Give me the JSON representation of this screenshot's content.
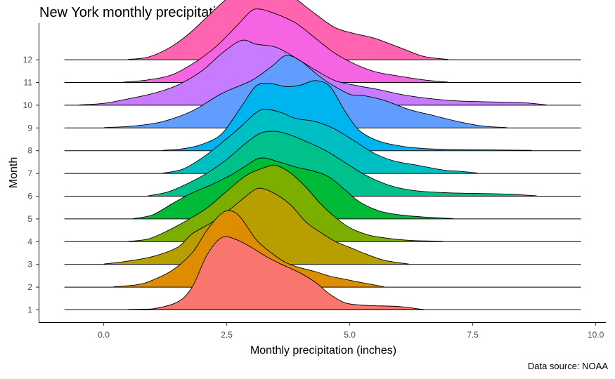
{
  "chart_data": {
    "type": "ridgeline",
    "title": "New York monthly precipitation",
    "caption": "Data source: NOAA",
    "xlabel": "Monthly precipitation (inches)",
    "ylabel": "Month",
    "xlim": [
      -1.0,
      10.0
    ],
    "x_ticks": [
      {
        "value": 0.0,
        "label": "0.0"
      },
      {
        "value": 2.5,
        "label": "2.5"
      },
      {
        "value": 5.0,
        "label": "5.0"
      },
      {
        "value": 7.5,
        "label": "7.5"
      },
      {
        "value": 10.0,
        "label": "10.0"
      }
    ],
    "baseline_range": [
      -0.8,
      9.7
    ],
    "grid": false,
    "legend": "none",
    "series": [
      {
        "month": "1",
        "color": "#F8766D",
        "range": [
          0.5,
          6.5
        ],
        "peak": 1.0,
        "density": [
          [
            0.5,
            0
          ],
          [
            1.0,
            0.01
          ],
          [
            1.5,
            0.1
          ],
          [
            1.8,
            0.3
          ],
          [
            2.1,
            0.72
          ],
          [
            2.4,
            0.95
          ],
          [
            2.7,
            0.92
          ],
          [
            3.0,
            0.82
          ],
          [
            3.3,
            0.7
          ],
          [
            3.6,
            0.6
          ],
          [
            4.0,
            0.48
          ],
          [
            4.3,
            0.36
          ],
          [
            4.6,
            0.2
          ],
          [
            4.9,
            0.09
          ],
          [
            5.2,
            0.06
          ],
          [
            5.5,
            0.05
          ],
          [
            6.0,
            0.04
          ],
          [
            6.5,
            0
          ]
        ]
      },
      {
        "month": "2",
        "color": "#DE8C00",
        "range": [
          0.2,
          5.7
        ],
        "peak": 1.0,
        "density": [
          [
            0.2,
            0
          ],
          [
            0.7,
            0.03
          ],
          [
            1.0,
            0.09
          ],
          [
            1.4,
            0.22
          ],
          [
            1.8,
            0.45
          ],
          [
            2.1,
            0.75
          ],
          [
            2.4,
            0.97
          ],
          [
            2.6,
            1.0
          ],
          [
            2.8,
            0.9
          ],
          [
            3.1,
            0.62
          ],
          [
            3.4,
            0.45
          ],
          [
            3.7,
            0.32
          ],
          [
            4.0,
            0.25
          ],
          [
            4.3,
            0.2
          ],
          [
            4.6,
            0.14
          ],
          [
            4.9,
            0.1
          ],
          [
            5.2,
            0.06
          ],
          [
            5.7,
            0
          ]
        ]
      },
      {
        "month": "3",
        "color": "#B79F00",
        "range": [
          0.0,
          6.2
        ],
        "peak": 1.0,
        "density": [
          [
            0.0,
            0
          ],
          [
            0.5,
            0.04
          ],
          [
            1.0,
            0.1
          ],
          [
            1.5,
            0.22
          ],
          [
            1.8,
            0.4
          ],
          [
            2.2,
            0.55
          ],
          [
            2.6,
            0.74
          ],
          [
            3.0,
            0.95
          ],
          [
            3.2,
            1.0
          ],
          [
            3.5,
            0.92
          ],
          [
            3.8,
            0.78
          ],
          [
            4.1,
            0.56
          ],
          [
            4.4,
            0.42
          ],
          [
            4.7,
            0.3
          ],
          [
            5.0,
            0.22
          ],
          [
            5.3,
            0.14
          ],
          [
            5.7,
            0.05
          ],
          [
            6.2,
            0
          ]
        ]
      },
      {
        "month": "4",
        "color": "#7CAE00",
        "range": [
          0.5,
          6.9
        ],
        "peak": 1.0,
        "density": [
          [
            0.5,
            0
          ],
          [
            0.9,
            0.03
          ],
          [
            1.3,
            0.14
          ],
          [
            1.7,
            0.28
          ],
          [
            2.1,
            0.44
          ],
          [
            2.5,
            0.66
          ],
          [
            2.9,
            0.87
          ],
          [
            3.3,
            0.98
          ],
          [
            3.5,
            1.0
          ],
          [
            3.8,
            0.9
          ],
          [
            4.1,
            0.72
          ],
          [
            4.4,
            0.5
          ],
          [
            4.7,
            0.32
          ],
          [
            5.0,
            0.18
          ],
          [
            5.4,
            0.08
          ],
          [
            5.9,
            0.03
          ],
          [
            6.3,
            0.01
          ],
          [
            6.9,
            0
          ]
        ]
      },
      {
        "month": "5",
        "color": "#00BA38",
        "range": [
          0.6,
          7.1
        ],
        "peak": 1.0,
        "density": [
          [
            0.6,
            0
          ],
          [
            1.0,
            0.05
          ],
          [
            1.4,
            0.2
          ],
          [
            1.8,
            0.34
          ],
          [
            2.2,
            0.45
          ],
          [
            2.6,
            0.58
          ],
          [
            2.9,
            0.7
          ],
          [
            3.2,
            0.8
          ],
          [
            3.6,
            0.74
          ],
          [
            3.9,
            0.68
          ],
          [
            4.3,
            0.62
          ],
          [
            4.6,
            0.54
          ],
          [
            4.9,
            0.38
          ],
          [
            5.2,
            0.22
          ],
          [
            5.6,
            0.1
          ],
          [
            6.0,
            0.05
          ],
          [
            6.5,
            0.02
          ],
          [
            7.1,
            0
          ]
        ]
      },
      {
        "month": "6",
        "color": "#00C08B",
        "range": [
          0.9,
          8.8
        ],
        "peak": 1.0,
        "density": [
          [
            0.9,
            0
          ],
          [
            1.3,
            0.05
          ],
          [
            1.7,
            0.16
          ],
          [
            2.1,
            0.3
          ],
          [
            2.5,
            0.48
          ],
          [
            2.9,
            0.7
          ],
          [
            3.2,
            0.83
          ],
          [
            3.5,
            0.85
          ],
          [
            3.8,
            0.8
          ],
          [
            4.1,
            0.72
          ],
          [
            4.5,
            0.6
          ],
          [
            4.9,
            0.44
          ],
          [
            5.3,
            0.28
          ],
          [
            5.8,
            0.14
          ],
          [
            6.3,
            0.07
          ],
          [
            7.0,
            0.04
          ],
          [
            7.8,
            0.03
          ],
          [
            8.3,
            0.02
          ],
          [
            8.8,
            0
          ]
        ]
      },
      {
        "month": "7",
        "color": "#00BFC4",
        "range": [
          1.2,
          7.6
        ],
        "peak": 1.0,
        "density": [
          [
            1.2,
            0
          ],
          [
            1.6,
            0.05
          ],
          [
            2.0,
            0.2
          ],
          [
            2.4,
            0.4
          ],
          [
            2.8,
            0.62
          ],
          [
            3.1,
            0.8
          ],
          [
            3.3,
            0.84
          ],
          [
            3.6,
            0.8
          ],
          [
            3.9,
            0.72
          ],
          [
            4.3,
            0.68
          ],
          [
            4.7,
            0.58
          ],
          [
            5.1,
            0.42
          ],
          [
            5.5,
            0.26
          ],
          [
            5.9,
            0.16
          ],
          [
            6.4,
            0.1
          ],
          [
            6.9,
            0.04
          ],
          [
            7.3,
            0.02
          ],
          [
            7.6,
            0
          ]
        ]
      },
      {
        "month": "8",
        "color": "#00B4F0",
        "range": [
          1.2,
          8.7
        ],
        "peak": 1.0,
        "density": [
          [
            1.2,
            0
          ],
          [
            1.6,
            0.02
          ],
          [
            2.0,
            0.08
          ],
          [
            2.4,
            0.22
          ],
          [
            2.8,
            0.58
          ],
          [
            3.1,
            0.85
          ],
          [
            3.4,
            0.88
          ],
          [
            3.7,
            0.84
          ],
          [
            4.0,
            0.86
          ],
          [
            4.3,
            0.92
          ],
          [
            4.6,
            0.84
          ],
          [
            4.9,
            0.52
          ],
          [
            5.2,
            0.26
          ],
          [
            5.6,
            0.12
          ],
          [
            6.1,
            0.05
          ],
          [
            6.6,
            0.02
          ],
          [
            7.2,
            0.01
          ],
          [
            8.0,
            0.005
          ],
          [
            8.7,
            0
          ]
        ]
      },
      {
        "month": "9",
        "color": "#619CFF",
        "range": [
          0.0,
          8.2
        ],
        "peak": 1.0,
        "density": [
          [
            0.0,
            0
          ],
          [
            0.6,
            0.02
          ],
          [
            1.2,
            0.08
          ],
          [
            1.8,
            0.22
          ],
          [
            2.4,
            0.45
          ],
          [
            3.0,
            0.62
          ],
          [
            3.4,
            0.8
          ],
          [
            3.7,
            0.95
          ],
          [
            4.0,
            0.88
          ],
          [
            4.3,
            0.72
          ],
          [
            4.6,
            0.58
          ],
          [
            5.0,
            0.44
          ],
          [
            5.3,
            0.42
          ],
          [
            5.7,
            0.36
          ],
          [
            6.2,
            0.24
          ],
          [
            6.7,
            0.16
          ],
          [
            7.2,
            0.08
          ],
          [
            7.7,
            0.02
          ],
          [
            8.2,
            0
          ]
        ]
      },
      {
        "month": "10",
        "color": "#C77CFF",
        "range": [
          -0.5,
          9.0
        ],
        "peak": 1.0,
        "density": [
          [
            -0.5,
            0
          ],
          [
            0.0,
            0.02
          ],
          [
            0.5,
            0.08
          ],
          [
            1.0,
            0.15
          ],
          [
            1.5,
            0.26
          ],
          [
            2.0,
            0.45
          ],
          [
            2.4,
            0.68
          ],
          [
            2.8,
            0.85
          ],
          [
            3.1,
            0.8
          ],
          [
            3.5,
            0.76
          ],
          [
            3.9,
            0.62
          ],
          [
            4.3,
            0.46
          ],
          [
            4.7,
            0.32
          ],
          [
            5.1,
            0.26
          ],
          [
            5.6,
            0.2
          ],
          [
            6.2,
            0.12
          ],
          [
            7.0,
            0.06
          ],
          [
            7.8,
            0.04
          ],
          [
            8.5,
            0.03
          ],
          [
            9.0,
            0
          ]
        ]
      },
      {
        "month": "11",
        "color": "#F564E3",
        "range": [
          0.4,
          7.0
        ],
        "peak": 1.0,
        "density": [
          [
            0.4,
            0
          ],
          [
            0.9,
            0.03
          ],
          [
            1.4,
            0.1
          ],
          [
            1.9,
            0.28
          ],
          [
            2.3,
            0.48
          ],
          [
            2.7,
            0.74
          ],
          [
            3.0,
            0.94
          ],
          [
            3.2,
            0.96
          ],
          [
            3.5,
            0.9
          ],
          [
            3.9,
            0.78
          ],
          [
            4.3,
            0.58
          ],
          [
            4.7,
            0.38
          ],
          [
            5.1,
            0.24
          ],
          [
            5.5,
            0.14
          ],
          [
            6.0,
            0.08
          ],
          [
            6.5,
            0.03
          ],
          [
            7.0,
            0
          ]
        ]
      },
      {
        "month": "12",
        "color": "#FF64B0",
        "range": [
          0.5,
          7.0
        ],
        "peak": 1.0,
        "density": [
          [
            0.5,
            0
          ],
          [
            0.9,
            0.03
          ],
          [
            1.3,
            0.14
          ],
          [
            1.7,
            0.32
          ],
          [
            2.1,
            0.56
          ],
          [
            2.5,
            0.8
          ],
          [
            2.8,
            0.94
          ],
          [
            3.0,
            1.0
          ],
          [
            3.3,
            0.98
          ],
          [
            3.6,
            0.92
          ],
          [
            3.9,
            0.8
          ],
          [
            4.3,
            0.6
          ],
          [
            4.7,
            0.42
          ],
          [
            5.1,
            0.34
          ],
          [
            5.5,
            0.28
          ],
          [
            6.0,
            0.16
          ],
          [
            6.5,
            0.04
          ],
          [
            7.0,
            0
          ]
        ]
      }
    ]
  }
}
